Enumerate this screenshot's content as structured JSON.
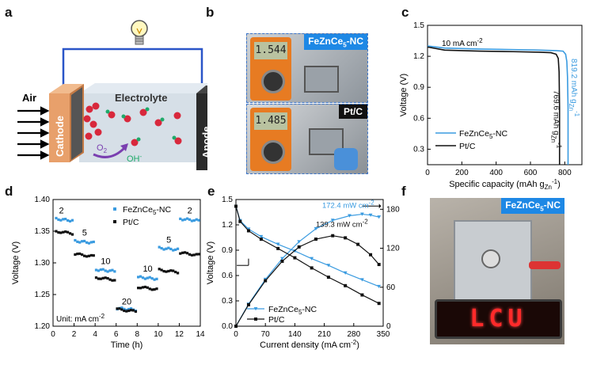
{
  "panels": {
    "a": "a",
    "b": "b",
    "c": "c",
    "d": "d",
    "e": "e",
    "f": "f"
  },
  "panel_a": {
    "air": "Air",
    "cathode": "Cathode",
    "electrolyte": "Electrolyte",
    "anode": "Anode",
    "o2_label": "O",
    "o2_sub": "2",
    "oh_label": "OH",
    "oh_sup": "-"
  },
  "panel_b": {
    "top_tag": "FeZnCe",
    "top_tag_sub": "5",
    "top_tag_suffix": "-NC",
    "top_reading": "1.544",
    "bottom_tag": "Pt/C",
    "bottom_reading": "1.485"
  },
  "panel_f": {
    "tag": "FeZnCe",
    "tag_sub": "5",
    "tag_suffix": "-NC",
    "led_text": "LCU"
  },
  "colors": {
    "fezn": "#3a9be0",
    "ptc": "#111111",
    "tag_bg": "#1e88e5"
  },
  "chart_data": [
    {
      "id": "c",
      "type": "line",
      "xlabel": "Specific capacity (mAh g",
      "xlabel_sub": "Zn",
      "xlabel_sup": "-1",
      "xlabel_end": ")",
      "ylabel": "Voltage (V)",
      "xlim": [
        0,
        900
      ],
      "ylim": [
        0.15,
        1.5
      ],
      "xticks": [
        0,
        200,
        400,
        600,
        800
      ],
      "yticks": [
        0.3,
        0.6,
        0.9,
        1.2,
        1.5
      ],
      "annotation": "10 mA cm",
      "annotation_sup": "-2",
      "series": [
        {
          "name": "FeZnCe",
          "name_sub": "5",
          "name_suffix": "-NC",
          "color": "#3a9be0",
          "x": [
            0,
            100,
            300,
            500,
            650,
            750,
            790,
            805,
            812,
            816,
            819.2,
            819.2
          ],
          "y": [
            1.3,
            1.28,
            1.27,
            1.265,
            1.26,
            1.255,
            1.25,
            1.22,
            1.15,
            1.0,
            0.7,
            0.15
          ]
        },
        {
          "name": "Pt/C",
          "color": "#111111",
          "x": [
            0,
            100,
            300,
            500,
            650,
            720,
            750,
            762,
            767,
            769.6,
            769.6
          ],
          "y": [
            1.29,
            1.26,
            1.25,
            1.245,
            1.24,
            1.235,
            1.22,
            1.18,
            1.05,
            0.7,
            0.15
          ]
        }
      ],
      "data_labels": [
        {
          "text": "819.2 mAh g",
          "sub": "Zn",
          "sup": "-1"
        },
        {
          "text": "769.6 mAh g",
          "sub": "Zn",
          "sup": "-1"
        }
      ]
    },
    {
      "id": "d",
      "type": "scatter",
      "xlabel": "Time (h)",
      "ylabel": "Voltage (V)",
      "xlim": [
        0,
        14
      ],
      "ylim": [
        1.2,
        1.4
      ],
      "xticks": [
        0,
        2,
        4,
        6,
        8,
        10,
        12,
        14
      ],
      "yticks": [
        1.2,
        1.25,
        1.3,
        1.35,
        1.4
      ],
      "unit_note": "Unit: mA cm",
      "unit_sup": "-2",
      "step_labels": [
        "2",
        "5",
        "10",
        "20",
        "10",
        "5",
        "2"
      ],
      "steps": [
        {
          "t0": 0.2,
          "t1": 2.0,
          "fezn": 1.368,
          "ptc": 1.348
        },
        {
          "t0": 2.0,
          "t1": 4.0,
          "fezn": 1.333,
          "ptc": 1.312
        },
        {
          "t0": 4.0,
          "t1": 6.0,
          "fezn": 1.288,
          "ptc": 1.275
        },
        {
          "t0": 6.0,
          "t1": 8.0,
          "fezn": 1.227,
          "ptc": 1.225
        },
        {
          "t0": 8.0,
          "t1": 10.0,
          "fezn": 1.276,
          "ptc": 1.26
        },
        {
          "t0": 10.0,
          "t1": 12.0,
          "fezn": 1.322,
          "ptc": 1.287
        },
        {
          "t0": 12.0,
          "t1": 14.0,
          "fezn": 1.368,
          "ptc": 1.314
        }
      ],
      "series": [
        {
          "name": "FeZnCe",
          "name_sub": "5",
          "name_suffix": "-NC",
          "color": "#3a9be0"
        },
        {
          "name": "Pt/C",
          "color": "#111111"
        }
      ]
    },
    {
      "id": "e",
      "type": "line",
      "xlabel": "Current density (mA cm",
      "xlabel_sup": "-2",
      "xlabel_end": ")",
      "ylabel": "Voltage (V)",
      "y2label": "Power density (mW cm",
      "y2label_sup": "-2",
      "y2label_end": ")",
      "xlim": [
        0,
        350
      ],
      "ylim": [
        0.0,
        1.5
      ],
      "y2lim": [
        0,
        195
      ],
      "xticks": [
        0,
        70,
        140,
        210,
        280,
        350
      ],
      "yticks": [
        0.0,
        0.3,
        0.6,
        0.9,
        1.2,
        1.5
      ],
      "y2ticks": [
        0,
        60,
        120,
        180
      ],
      "annotations": [
        {
          "text": "172.4 mW cm",
          "sup": "-2"
        },
        {
          "text": "139.3 mW cm",
          "sup": "-2"
        }
      ],
      "series": [
        {
          "name": "FeZnCe",
          "name_sub": "5",
          "name_suffix": "-NC",
          "color": "#3a9be0",
          "volt_x": [
            0,
            10,
            30,
            60,
            100,
            140,
            180,
            220,
            260,
            300,
            340
          ],
          "volt_y": [
            1.42,
            1.25,
            1.15,
            1.06,
            0.97,
            0.89,
            0.8,
            0.72,
            0.63,
            0.55,
            0.47
          ],
          "power_x": [
            0,
            30,
            70,
            110,
            150,
            190,
            230,
            270,
            300,
            320,
            340
          ],
          "power_y": [
            0,
            34,
            72,
            104,
            130,
            150,
            163,
            170,
            172.4,
            171,
            168
          ]
        },
        {
          "name": "Pt/C",
          "color": "#111111",
          "volt_x": [
            0,
            10,
            30,
            60,
            100,
            140,
            180,
            220,
            260,
            300,
            340
          ],
          "volt_y": [
            1.42,
            1.24,
            1.13,
            1.03,
            0.92,
            0.81,
            0.69,
            0.58,
            0.48,
            0.37,
            0.27
          ],
          "power_x": [
            0,
            30,
            70,
            110,
            150,
            190,
            230,
            260,
            290,
            320,
            340
          ],
          "power_y": [
            0,
            33,
            70,
            100,
            122,
            134,
            139.3,
            136,
            126,
            110,
            95
          ]
        }
      ]
    }
  ]
}
